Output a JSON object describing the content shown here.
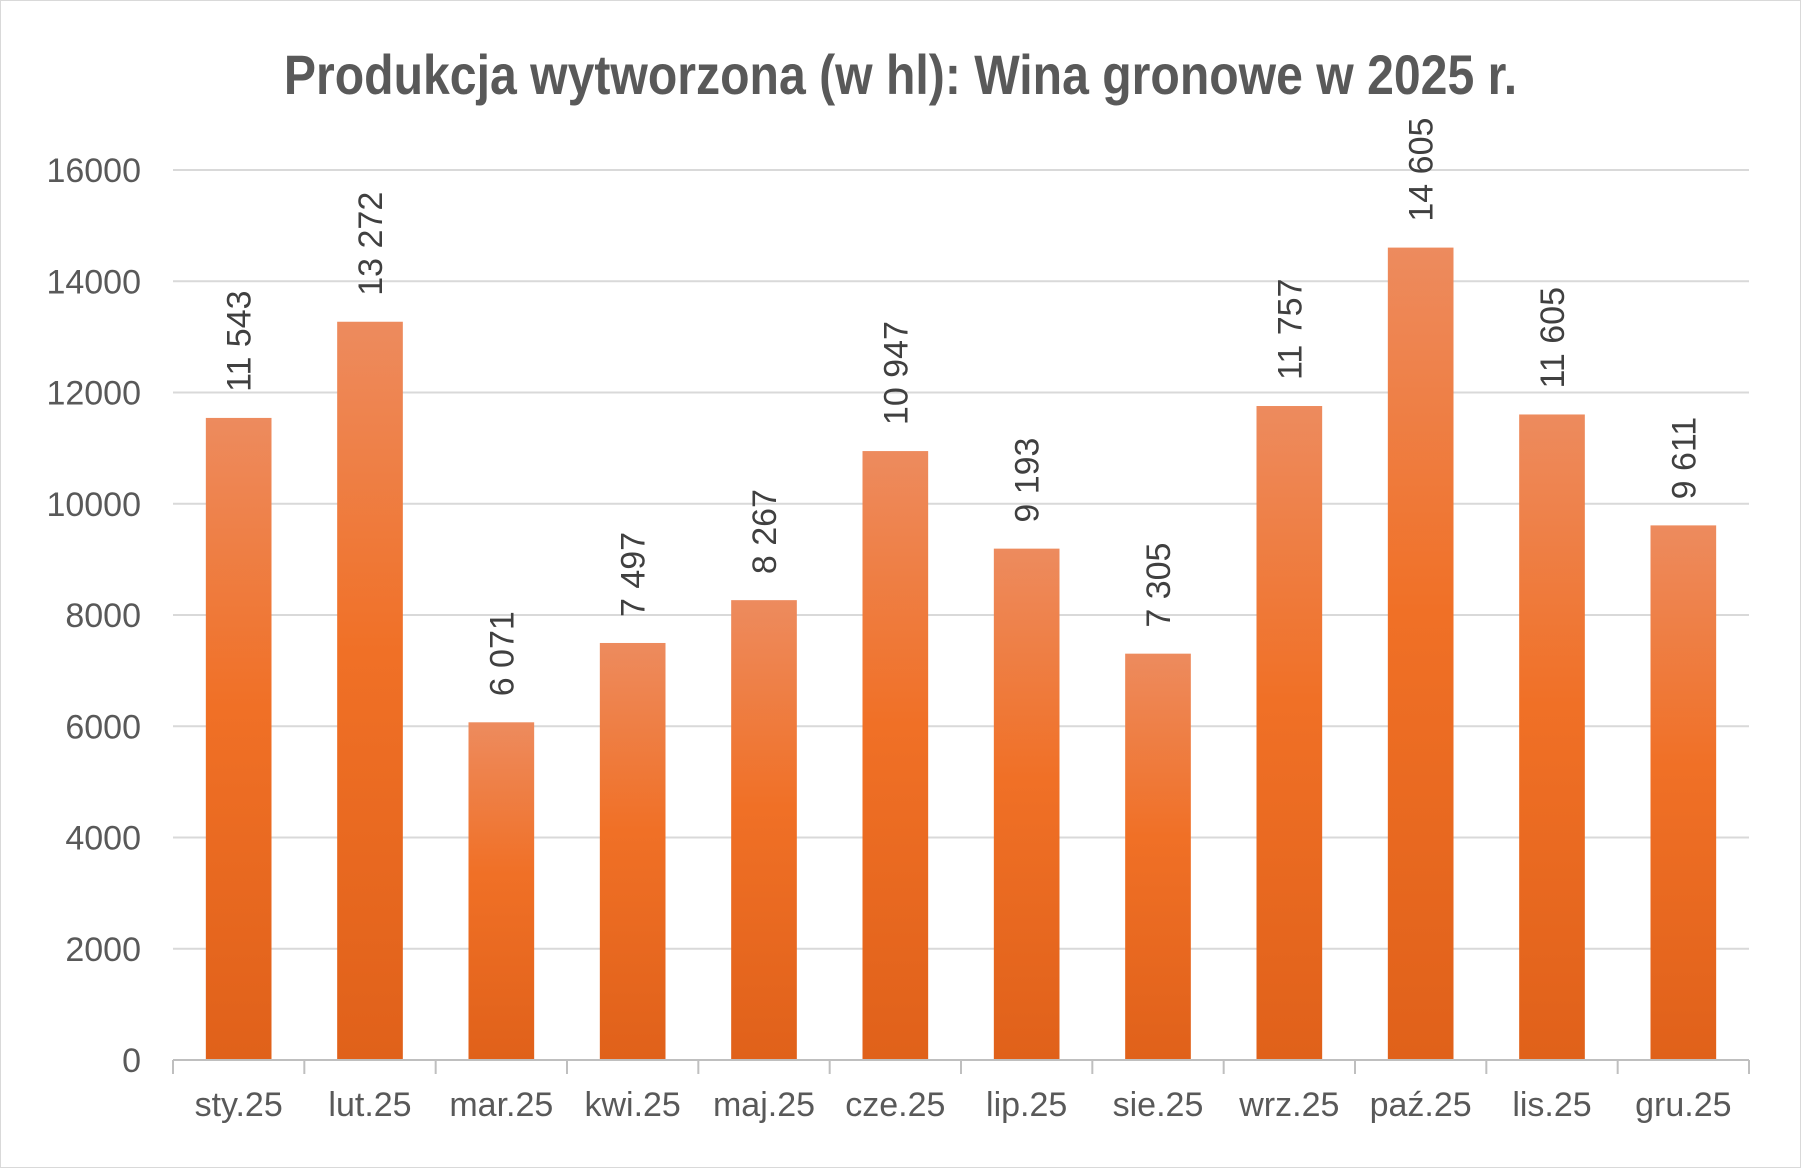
{
  "chart_data": {
    "type": "bar",
    "title": "Produkcja wytworzona (w hl): Wina gronowe w 2025 r.",
    "xlabel": "",
    "ylabel": "",
    "categories": [
      "sty.25",
      "lut.25",
      "mar.25",
      "kwi.25",
      "maj.25",
      "cze.25",
      "lip.25",
      "sie.25",
      "wrz.25",
      "paź.25",
      "lis.25",
      "gru.25"
    ],
    "values": [
      11543,
      13272,
      6071,
      7497,
      8267,
      10947,
      9193,
      7305,
      11757,
      14605,
      11605,
      9611
    ],
    "data_labels": [
      "11 543",
      "13 272",
      "6 071",
      "7 497",
      "8 267",
      "10 947",
      "9 193",
      "7 305",
      "11 757",
      "14 605",
      "11 605",
      "9 611"
    ],
    "ylim": [
      0,
      16000
    ],
    "yticks": [
      "0",
      "2000",
      "4000",
      "6000",
      "8000",
      "10000",
      "12000",
      "14000",
      "16000"
    ],
    "grid": true,
    "legend": "none",
    "colors": {
      "bar_top": "#ED8B5E",
      "bar_mid": "#F07026",
      "bar_bottom": "#E0611A",
      "grid": "#d9d9d9",
      "axis": "#bfbfbf"
    }
  }
}
